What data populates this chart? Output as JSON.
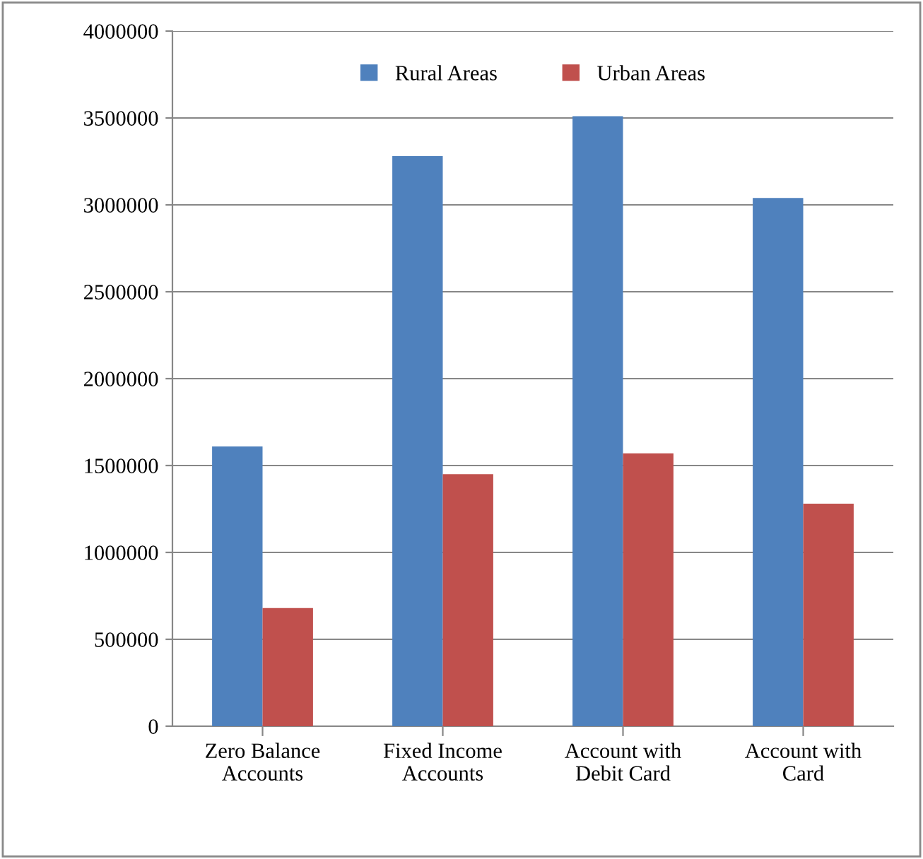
{
  "chart_data": {
    "type": "bar",
    "categories": [
      "Zero Balance\nAccounts",
      "Fixed Income\nAccounts",
      "Account with\nDebit Card",
      "Account with\nCard"
    ],
    "series": [
      {
        "name": "Rural Areas",
        "color": "#4f81bd",
        "values": [
          1610000,
          3280000,
          3510000,
          3040000
        ]
      },
      {
        "name": "Urban Areas",
        "color": "#c0504d",
        "values": [
          680000,
          1450000,
          1570000,
          1280000
        ]
      }
    ],
    "ylim": [
      0,
      4000000
    ],
    "yticks": [
      0,
      500000,
      1000000,
      1500000,
      2000000,
      2500000,
      3000000,
      3500000,
      4000000
    ],
    "grid": "y",
    "legend": "top"
  }
}
